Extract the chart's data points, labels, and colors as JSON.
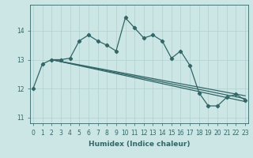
{
  "xlabel": "Humidex (Indice chaleur)",
  "ylabel": "",
  "bg_color": "#cce5e5",
  "grid_color": "#b0d0d0",
  "line_color": "#336666",
  "x": [
    0,
    1,
    2,
    3,
    4,
    5,
    6,
    7,
    8,
    9,
    10,
    11,
    12,
    13,
    14,
    15,
    16,
    17,
    18,
    19,
    20,
    21,
    22,
    23
  ],
  "y_main": [
    12.0,
    12.85,
    13.0,
    13.0,
    13.05,
    13.65,
    13.85,
    13.65,
    13.5,
    13.3,
    14.45,
    14.1,
    13.75,
    13.85,
    13.65,
    13.05,
    13.3,
    12.8,
    11.85,
    11.4,
    11.4,
    11.7,
    11.8,
    11.6
  ],
  "ylim": [
    10.8,
    14.9
  ],
  "yticks": [
    11,
    12,
    13,
    14
  ],
  "xlim": [
    -0.3,
    23.3
  ],
  "xticks": [
    0,
    1,
    2,
    3,
    4,
    5,
    6,
    7,
    8,
    9,
    10,
    11,
    12,
    13,
    14,
    15,
    16,
    17,
    18,
    19,
    20,
    21,
    22,
    23
  ],
  "trend_lines": [
    {
      "x0": 2,
      "y0": 13.0,
      "x1": 23,
      "y1": 11.55
    },
    {
      "x0": 2,
      "y0": 13.0,
      "x1": 23,
      "y1": 11.65
    },
    {
      "x0": 2,
      "y0": 13.0,
      "x1": 23,
      "y1": 11.75
    }
  ],
  "marker": "D",
  "markersize": 2.2,
  "linewidth": 0.9,
  "tick_fontsize": 5.5,
  "label_fontsize": 6.5
}
